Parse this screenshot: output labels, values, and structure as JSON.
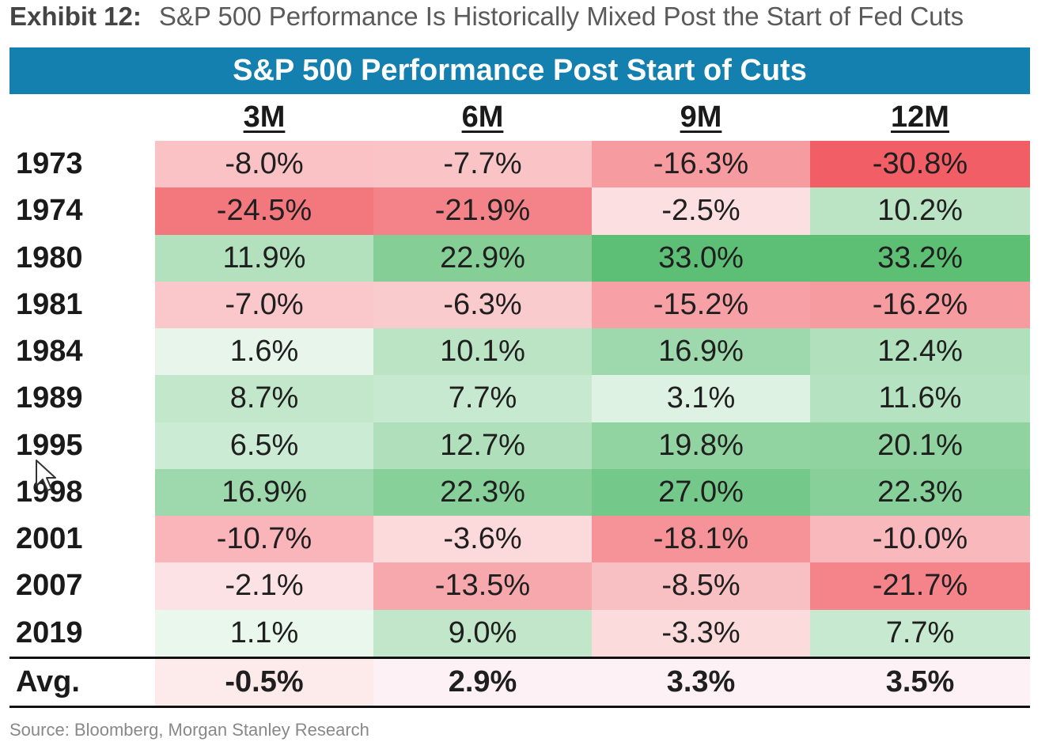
{
  "exhibit": {
    "label": "Exhibit 12:",
    "title": "S&P 500 Performance Is Historically Mixed Post the Start of Fed Cuts"
  },
  "source": "Source: Bloomberg, Morgan Stanley Research",
  "colors": {
    "banner": "#1380b0",
    "positive_max": "#5cbf74",
    "negative_max": "#f0545c",
    "neutral": "#ffffff"
  },
  "chart_data": {
    "type": "table",
    "title": "S&P 500 Performance Post Start of Cuts",
    "columns": [
      "3M",
      "6M",
      "9M",
      "12M"
    ],
    "rows": [
      {
        "year": "1973",
        "values": [
          "-8.0%",
          "-7.7%",
          "-16.3%",
          "-30.8%"
        ],
        "nums": [
          -8.0,
          -7.7,
          -16.3,
          -30.8
        ]
      },
      {
        "year": "1974",
        "values": [
          "-24.5%",
          "-21.9%",
          "-2.5%",
          "10.2%"
        ],
        "nums": [
          -24.5,
          -21.9,
          -2.5,
          10.2
        ]
      },
      {
        "year": "1980",
        "values": [
          "11.9%",
          "22.9%",
          "33.0%",
          "33.2%"
        ],
        "nums": [
          11.9,
          22.9,
          33.0,
          33.2
        ]
      },
      {
        "year": "1981",
        "values": [
          "-7.0%",
          "-6.3%",
          "-15.2%",
          "-16.2%"
        ],
        "nums": [
          -7.0,
          -6.3,
          -15.2,
          -16.2
        ]
      },
      {
        "year": "1984",
        "values": [
          "1.6%",
          "10.1%",
          "16.9%",
          "12.4%"
        ],
        "nums": [
          1.6,
          10.1,
          16.9,
          12.4
        ]
      },
      {
        "year": "1989",
        "values": [
          "8.7%",
          "7.7%",
          "3.1%",
          "11.6%"
        ],
        "nums": [
          8.7,
          7.7,
          3.1,
          11.6
        ]
      },
      {
        "year": "1995",
        "values": [
          "6.5%",
          "12.7%",
          "19.8%",
          "20.1%"
        ],
        "nums": [
          6.5,
          12.7,
          19.8,
          20.1
        ]
      },
      {
        "year": "1998",
        "values": [
          "16.9%",
          "22.3%",
          "27.0%",
          "22.3%"
        ],
        "nums": [
          16.9,
          22.3,
          27.0,
          22.3
        ]
      },
      {
        "year": "2001",
        "values": [
          "-10.7%",
          "-3.6%",
          "-18.1%",
          "-10.0%"
        ],
        "nums": [
          -10.7,
          -3.6,
          -18.1,
          -10.0
        ]
      },
      {
        "year": "2007",
        "values": [
          "-2.1%",
          "-13.5%",
          "-8.5%",
          "-21.7%"
        ],
        "nums": [
          -2.1,
          -13.5,
          -8.5,
          -21.7
        ]
      },
      {
        "year": "2019",
        "values": [
          "1.1%",
          "9.0%",
          "-3.3%",
          "7.7%"
        ],
        "nums": [
          1.1,
          9.0,
          -3.3,
          7.7
        ]
      }
    ],
    "average": {
      "label": "Avg.",
      "values": [
        "-0.5%",
        "2.9%",
        "3.3%",
        "3.5%"
      ],
      "nums": [
        -0.5,
        2.9,
        3.3,
        3.5
      ]
    }
  }
}
